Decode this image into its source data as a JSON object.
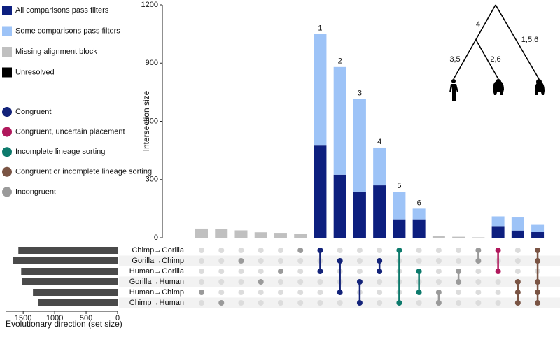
{
  "chart_data": {
    "type": "upset",
    "ylabel": "Intersection size",
    "ylim": [
      0,
      1200
    ],
    "yticks": [
      0,
      300,
      600,
      900,
      1200
    ],
    "series": [
      {
        "name": "All comparisons pass filters",
        "color": "#0d1f7f",
        "values": [
          null,
          null,
          null,
          null,
          null,
          null,
          475,
          325,
          238,
          270,
          95,
          95,
          null,
          null,
          null,
          60,
          37,
          30
        ]
      },
      {
        "name": "Some comparisons pass filters",
        "color": "#9dc3f7",
        "values": [
          null,
          null,
          null,
          null,
          null,
          null,
          575,
          555,
          477,
          195,
          142,
          55,
          null,
          null,
          null,
          50,
          71,
          40
        ]
      },
      {
        "name": "Missing alignment block",
        "color": "#c0c0c0",
        "values": [
          47,
          45,
          38,
          28,
          25,
          20,
          null,
          null,
          null,
          null,
          null,
          null,
          10,
          5,
          2,
          null,
          null,
          null
        ]
      },
      {
        "name": "Unresolved",
        "color": "#000000",
        "values": [
          null,
          null,
          null,
          null,
          null,
          null,
          null,
          null,
          null,
          null,
          null,
          null,
          null,
          null,
          null,
          null,
          null,
          null
        ]
      }
    ],
    "bar_labels": [
      null,
      null,
      null,
      null,
      null,
      null,
      "1",
      "2",
      "3",
      "4",
      "5",
      "6",
      null,
      null,
      null,
      null,
      null,
      null
    ],
    "intersection_types": [
      {
        "name": "Congruent",
        "color": "#13237a"
      },
      {
        "name": "Congruent, uncertain placement",
        "color": "#b0185c"
      },
      {
        "name": "Incomplete lineage sorting",
        "color": "#0d7a6c"
      },
      {
        "name": "Congruent or incomplete lineage sorting",
        "color": "#7a5444"
      },
      {
        "name": "Incongruent",
        "color": "#9a9a9a"
      }
    ],
    "columns": [
      {
        "sets": [
          4
        ],
        "type": 4
      },
      {
        "sets": [
          5
        ],
        "type": 4
      },
      {
        "sets": [
          1
        ],
        "type": 4
      },
      {
        "sets": [
          3
        ],
        "type": 4
      },
      {
        "sets": [
          2
        ],
        "type": 4
      },
      {
        "sets": [
          0
        ],
        "type": 4
      },
      {
        "sets": [
          0,
          2
        ],
        "type": 0
      },
      {
        "sets": [
          1,
          4
        ],
        "type": 0
      },
      {
        "sets": [
          3,
          5
        ],
        "type": 0
      },
      {
        "sets": [
          1,
          2
        ],
        "type": 0
      },
      {
        "sets": [
          0,
          5
        ],
        "type": 2
      },
      {
        "sets": [
          2,
          4
        ],
        "type": 2
      },
      {
        "sets": [
          4,
          5
        ],
        "type": 4
      },
      {
        "sets": [
          2,
          3
        ],
        "type": 4
      },
      {
        "sets": [
          0,
          1
        ],
        "type": 4
      },
      {
        "sets": [
          0,
          2
        ],
        "type": 1
      },
      {
        "sets": [
          3,
          4,
          5
        ],
        "type": 3
      },
      {
        "sets": [
          0,
          1,
          3,
          4,
          5
        ],
        "type": 3
      }
    ],
    "sets": {
      "names": [
        "Chimp→Gorilla",
        "Gorilla→Chimp",
        "Human→Gorilla",
        "Gorilla→Human",
        "Human→Chimp",
        "Chimp→Human"
      ],
      "sizes": [
        1577,
        1665,
        1532,
        1521,
        1345,
        1257
      ],
      "color": "#4a4a4a",
      "xlim": [
        1780,
        0
      ],
      "xticks": [
        1500,
        1000,
        500,
        0
      ],
      "xlabel": "Evolutionary direction (set size)"
    },
    "tree_labels": [
      "4",
      "3,5",
      "2,6",
      "1,5,6"
    ]
  }
}
